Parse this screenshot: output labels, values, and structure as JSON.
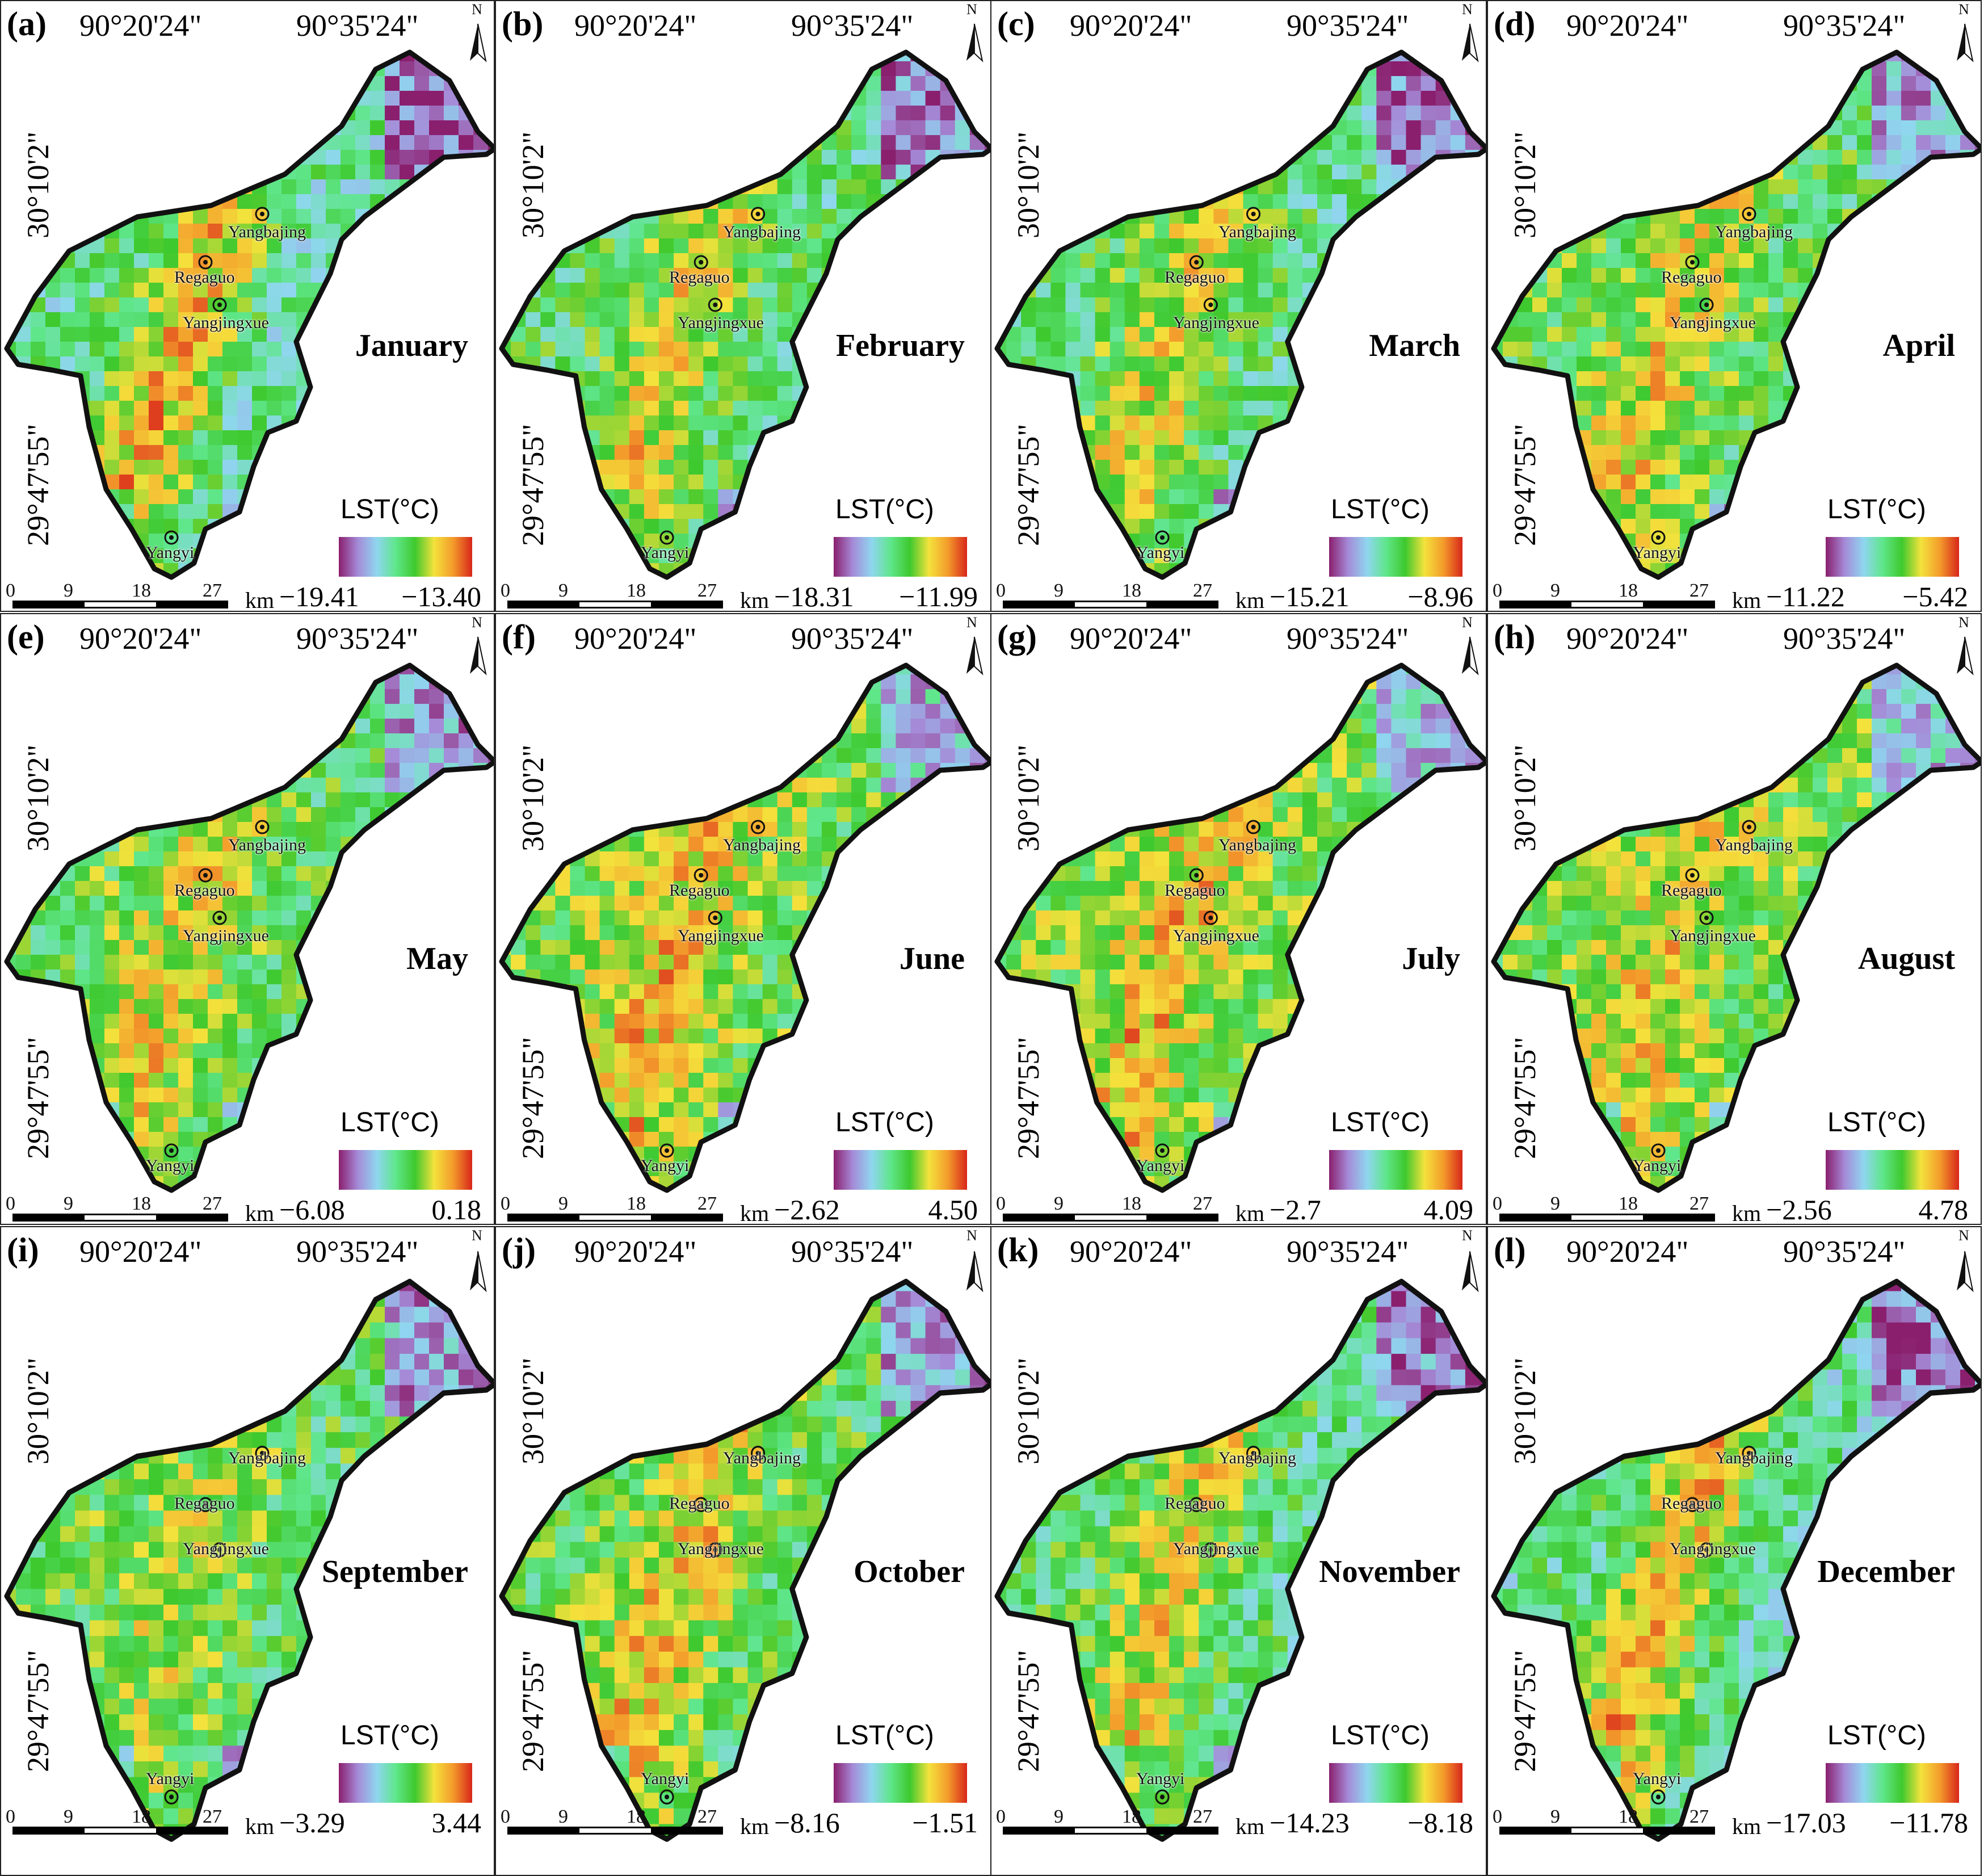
{
  "figure": {
    "legend_title": "LST(°C)",
    "longitude_labels": [
      "90°20'24\"",
      "90°35'24\""
    ],
    "latitude_labels": [
      "30°10'2\"",
      "29°47'55\""
    ],
    "north_arrow_label": "N",
    "scale_bar": {
      "ticks": [
        "0",
        "9",
        "18",
        "27"
      ],
      "unit": "km"
    },
    "colormap": [
      "#8a1f6e",
      "#a58bd8",
      "#8fd6ef",
      "#5fe68a",
      "#3ec92e",
      "#f4e23c",
      "#f39b2b",
      "#d8261a"
    ],
    "places": [
      "Yangbajing",
      "Regaguo",
      "Yangjingxue",
      "Yangyi"
    ],
    "panels": [
      {
        "tag": "(a)",
        "month": "January",
        "min": "−19.41",
        "max": "−13.40",
        "mean": 0.45,
        "hot": 0.9
      },
      {
        "tag": "(b)",
        "month": "February",
        "min": "−18.31",
        "max": "−11.99",
        "mean": 0.5,
        "hot": 0.8
      },
      {
        "tag": "(c)",
        "month": "March",
        "min": "−15.21",
        "max": "−8.96",
        "mean": 0.5,
        "hot": 0.8
      },
      {
        "tag": "(d)",
        "month": "April",
        "min": "−11.22",
        "max": "−5.42",
        "mean": 0.55,
        "hot": 0.8
      },
      {
        "tag": "(e)",
        "month": "May",
        "min": "−6.08",
        "max": "0.18",
        "mean": 0.55,
        "hot": 0.8
      },
      {
        "tag": "(f)",
        "month": "June",
        "min": "−2.62",
        "max": "4.50",
        "mean": 0.6,
        "hot": 0.85
      },
      {
        "tag": "(g)",
        "month": "July",
        "min": "−2.7",
        "max": "4.09",
        "mean": 0.6,
        "hot": 0.85
      },
      {
        "tag": "(h)",
        "month": "August",
        "min": "−2.56",
        "max": "4.78",
        "mean": 0.6,
        "hot": 0.8
      },
      {
        "tag": "(i)",
        "month": "September",
        "min": "−3.29",
        "max": "3.44",
        "mean": 0.55,
        "hot": 0.7
      },
      {
        "tag": "(j)",
        "month": "October",
        "min": "−8.16",
        "max": "−1.51",
        "mean": 0.55,
        "hot": 0.85
      },
      {
        "tag": "(k)",
        "month": "November",
        "min": "−14.23",
        "max": "−8.18",
        "mean": 0.5,
        "hot": 0.8
      },
      {
        "tag": "(l)",
        "month": "December",
        "min": "−17.03",
        "max": "−11.78",
        "mean": 0.45,
        "hot": 0.9
      }
    ]
  }
}
